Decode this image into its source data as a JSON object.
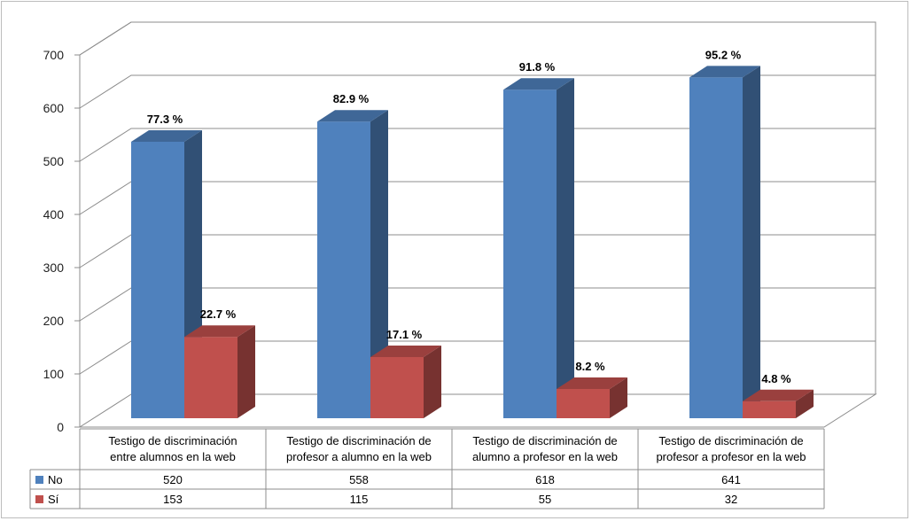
{
  "chart_data": {
    "type": "bar",
    "title": "",
    "xlabel": "",
    "ylabel": "",
    "ylim": [
      0,
      700
    ],
    "yticks": [
      0,
      100,
      200,
      300,
      400,
      500,
      600,
      700
    ],
    "grid": true,
    "legend": "data-table-left",
    "categories": [
      [
        "Testigo de discriminación",
        "entre alumnos en la web"
      ],
      [
        "Testigo  de discriminación de",
        "profesor a alumno en la web"
      ],
      [
        "Testigo de discriminación de",
        "alumno a profesor en la web"
      ],
      [
        "Testigo de discriminación de",
        "profesor a profesor en la web"
      ]
    ],
    "series": [
      {
        "name": "No",
        "color": "#4f81bd",
        "values": [
          520,
          558,
          618,
          641
        ],
        "labels": [
          "77.3 %",
          "82.9 %",
          "91.8 %",
          "95.2 %"
        ]
      },
      {
        "name": "Sí",
        "color": "#c0504d",
        "values": [
          153,
          115,
          55,
          32
        ],
        "labels": [
          "22.7 %",
          "17.1 %",
          "8.2 %",
          "4.8 %"
        ]
      }
    ]
  }
}
